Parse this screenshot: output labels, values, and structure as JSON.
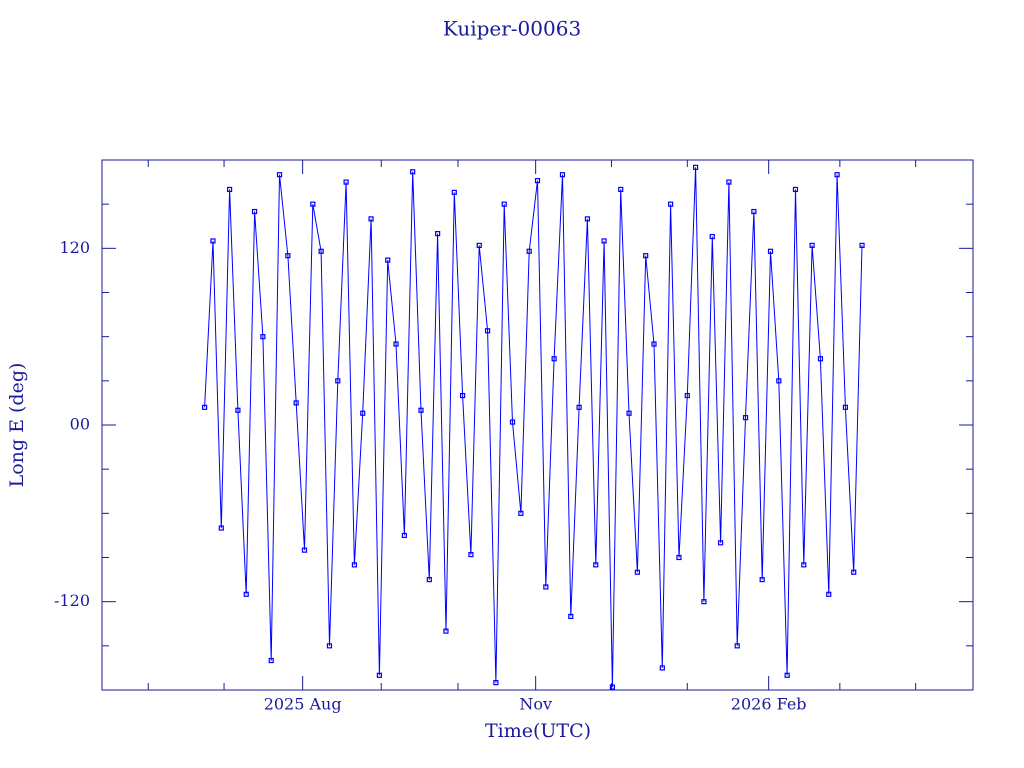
{
  "chart_data": {
    "type": "line",
    "title": "Kuiper-00063",
    "xlabel": "Time(UTC)",
    "ylabel": "Long E (deg)",
    "x": [
      2025.475,
      2025.484,
      2025.493,
      2025.502,
      2025.511,
      2025.52,
      2025.529,
      2025.538,
      2025.547,
      2025.556,
      2025.565,
      2025.574,
      2025.583,
      2025.592,
      2025.601,
      2025.61,
      2025.619,
      2025.628,
      2025.637,
      2025.646,
      2025.655,
      2025.664,
      2025.673,
      2025.682,
      2025.691,
      2025.7,
      2025.709,
      2025.718,
      2025.727,
      2025.736,
      2025.745,
      2025.754,
      2025.763,
      2025.772,
      2025.781,
      2025.79,
      2025.799,
      2025.808,
      2025.817,
      2025.826,
      2025.835,
      2025.844,
      2025.853,
      2025.862,
      2025.871,
      2025.88,
      2025.889,
      2025.898,
      2025.907,
      2025.916,
      2025.925,
      2025.934,
      2025.943,
      2025.952,
      2025.961,
      2025.97,
      2025.979,
      2025.988,
      2025.997,
      2026.006,
      2026.015,
      2026.024,
      2026.033,
      2026.042,
      2026.051,
      2026.06,
      2026.069,
      2026.078,
      2026.087,
      2026.096,
      2026.105,
      2026.114,
      2026.123,
      2026.132,
      2026.141,
      2026.15,
      2026.159,
      2026.168,
      2026.177,
      2026.186
    ],
    "series": [
      {
        "color": "#0000ff",
        "values": [
          12,
          125,
          -70,
          160,
          10,
          -115,
          145,
          60,
          -160,
          170,
          115,
          15,
          -85,
          150,
          118,
          -150,
          30,
          165,
          -95,
          8,
          140,
          -170,
          112,
          55,
          -75,
          172,
          10,
          -105,
          130,
          -140,
          158,
          20,
          -88,
          122,
          64,
          -175,
          150,
          2,
          -60,
          118,
          166,
          -110,
          45,
          170,
          -130,
          12,
          140,
          -95,
          125,
          -178,
          160,
          8,
          -100,
          115,
          55,
          -165,
          150,
          -90,
          20,
          175,
          -120,
          128,
          -80,
          165,
          -150,
          5,
          145,
          -105,
          118,
          30,
          -170,
          160,
          -95,
          122,
          45,
          -115,
          170,
          12,
          -100,
          122
        ]
      }
    ],
    "xlim": [
      2025.364,
      2026.306
    ],
    "xticks": [
      {
        "value": 2025.581,
        "label": "2025 Aug"
      },
      {
        "value": 2025.833,
        "label": "Nov"
      },
      {
        "value": 2026.085,
        "label": "2026 Feb"
      }
    ],
    "xminorticks": [
      2025.414,
      2025.496,
      2025.666,
      2025.749,
      2025.915,
      2025.997,
      2026.162,
      2026.244
    ],
    "ylim": [
      -180,
      180
    ],
    "yticks": [
      -120,
      {
        "value": 0,
        "label": "00"
      },
      120
    ],
    "yminorticks": [
      -150,
      -90,
      -60,
      -30,
      30,
      60,
      90,
      150
    ]
  }
}
